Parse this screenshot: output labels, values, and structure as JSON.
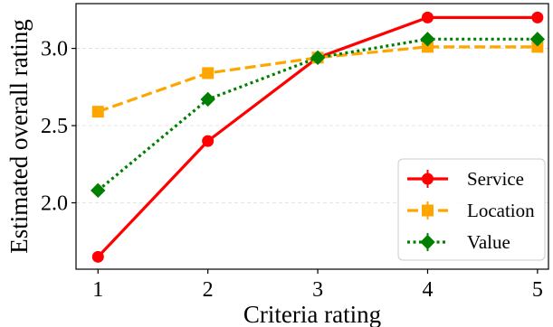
{
  "chart_data": {
    "type": "line",
    "title": "",
    "xlabel": "Criteria rating",
    "ylabel": "Estimated overall rating",
    "x": [
      1,
      2,
      3,
      4,
      5
    ],
    "xticks": [
      "1",
      "2",
      "3",
      "4",
      "5"
    ],
    "yticks": [
      {
        "value": 2.0,
        "label": "2.0"
      },
      {
        "value": 2.5,
        "label": "2.5"
      },
      {
        "value": 3.0,
        "label": "3.0"
      }
    ],
    "xlim": [
      0.8,
      5.1
    ],
    "ylim": [
      1.57,
      3.29
    ],
    "grid": "horizontal dashed",
    "legend_position": "lower-right",
    "series": [
      {
        "name": "Service",
        "values": [
          1.65,
          2.4,
          2.94,
          3.2,
          3.2
        ],
        "color": "#ff0000",
        "dash": "solid",
        "marker": "circle"
      },
      {
        "name": "Location",
        "values": [
          2.59,
          2.84,
          2.94,
          3.01,
          3.01
        ],
        "color": "#ffa500",
        "dash": "dashed",
        "marker": "square"
      },
      {
        "name": "Value",
        "values": [
          2.08,
          2.67,
          2.94,
          3.06,
          3.06
        ],
        "color": "#008000",
        "dash": "dotted",
        "marker": "diamond"
      }
    ]
  }
}
